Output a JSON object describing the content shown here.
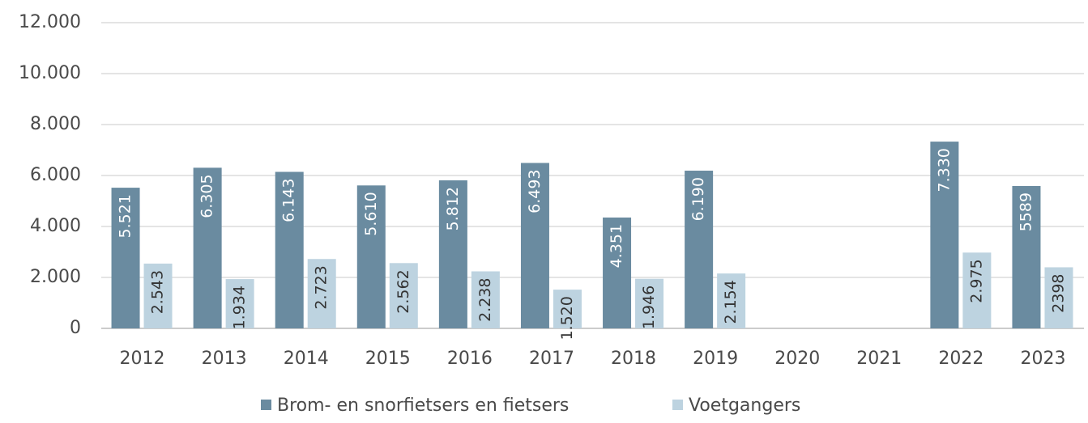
{
  "chart_data": {
    "type": "bar",
    "categories": [
      "2012",
      "2013",
      "2014",
      "2015",
      "2016",
      "2017",
      "2018",
      "2019",
      "2020",
      "2021",
      "2022",
      "2023"
    ],
    "series": [
      {
        "name": "Brom- en snorfietsers en fietsers",
        "color": "#6a8ba0",
        "values": [
          5521,
          6305,
          6143,
          5610,
          5812,
          6493,
          4351,
          6190,
          null,
          null,
          7330,
          5589
        ],
        "value_labels": [
          "5.521",
          "6.305",
          "6.143",
          "5.610",
          "5.812",
          "6.493",
          "4.351",
          "6.190",
          null,
          null,
          "7.330",
          "5589"
        ]
      },
      {
        "name": "Voetgangers",
        "color": "#bdd3e0",
        "values": [
          2543,
          1934,
          2723,
          2562,
          2238,
          1520,
          1946,
          2154,
          null,
          null,
          2975,
          2398
        ],
        "value_labels": [
          "2.543",
          "1.934",
          "2.723",
          "2.562",
          "2.238",
          "1.520",
          "1.946",
          "2.154",
          null,
          null,
          "2.975",
          "2398"
        ]
      }
    ],
    "ylim": [
      0,
      12000
    ],
    "yticks": [
      0,
      {
        "value": 2000,
        "label": "2.000"
      },
      {
        "value": 4000,
        "label": "4.000"
      },
      {
        "value": 6000,
        "label": "6.000"
      },
      {
        "value": 8000,
        "label": "8.000"
      },
      {
        "value": 10000,
        "label": "10.000"
      },
      {
        "value": 12000,
        "label": "12.000"
      }
    ],
    "grid": true,
    "legend": "bottom"
  }
}
